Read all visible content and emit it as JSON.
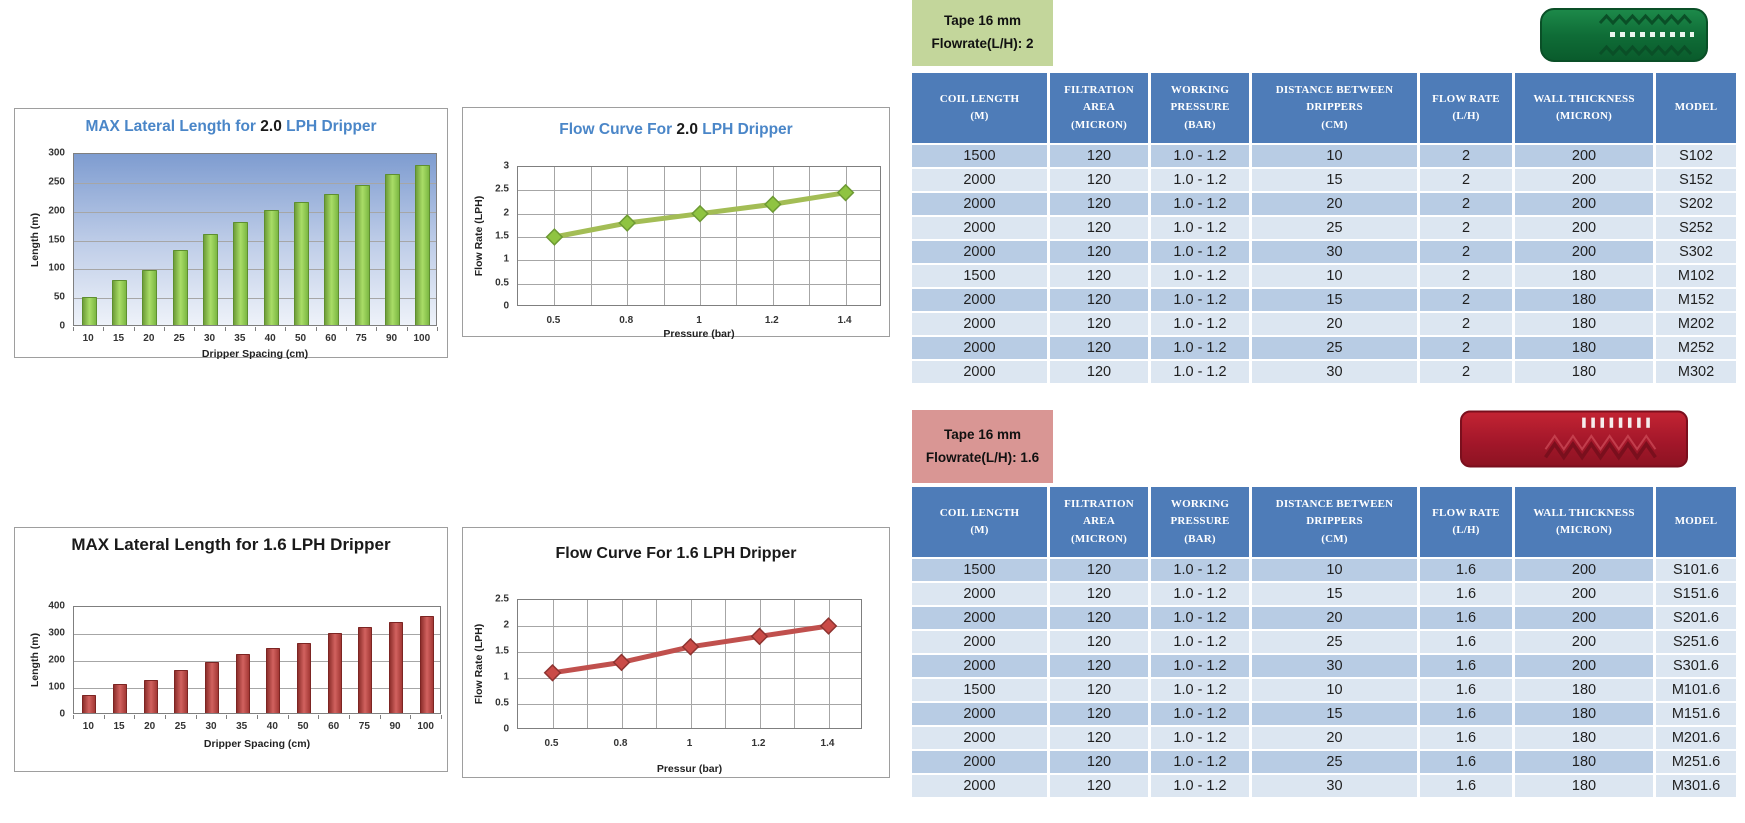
{
  "chart_data": [
    {
      "id": "bar_2lph",
      "type": "bar",
      "title_parts": [
        {
          "text": "MAX Lateral Length for ",
          "color": "#4a86c8"
        },
        {
          "text": "2.0",
          "color": "#1a1a1a"
        },
        {
          "text": " LPH Dripper",
          "color": "#4a86c8"
        }
      ],
      "categories": [
        "10",
        "15",
        "20",
        "25",
        "30",
        "35",
        "40",
        "50",
        "60",
        "75",
        "90",
        "100"
      ],
      "values": [
        48,
        78,
        95,
        130,
        158,
        178,
        200,
        213,
        228,
        242,
        262,
        278
      ],
      "xlabel": "Dripper Spacing (cm)",
      "ylabel": "Length (m)",
      "ylim": [
        0,
        300
      ],
      "ystep": 50,
      "grid": "horizontal",
      "legend": "none",
      "style": {
        "bar_gradient": [
          "#6f9e3a",
          "#a9dd67",
          "#7cb743"
        ],
        "bar_edge": "#5e8f2f",
        "plot_bg": [
          "#7e9cd0",
          "#bccbe7",
          "#eef2f9"
        ]
      }
    },
    {
      "id": "flow_2lph",
      "type": "line",
      "title_parts": [
        {
          "text": "Flow Curve For ",
          "color": "#4a86c8"
        },
        {
          "text": "2.0",
          "color": "#1a1a1a"
        },
        {
          "text": " LPH Dripper",
          "color": "#4a86c8"
        }
      ],
      "categories": [
        "0.5",
        "0.8",
        "1",
        "1.2",
        "1.4"
      ],
      "values": [
        1.5,
        1.8,
        2.0,
        2.2,
        2.45
      ],
      "xlabel": "Pressure (bar)",
      "ylabel": "Flow Rate (LPH)",
      "ylim": [
        0,
        3
      ],
      "ystep": 0.5,
      "grid": "both",
      "legend": "none",
      "style": {
        "line_color": "#a3bd55",
        "marker_fill": "#8fc441",
        "marker_edge": "#6d9a33",
        "plot_bg": [
          "#ffffff"
        ]
      }
    },
    {
      "id": "bar_16lph",
      "type": "bar",
      "title_parts": [
        {
          "text": "MAX Lateral Length for 1.6 LPH Dripper",
          "color": "#1a1a1a"
        }
      ],
      "categories": [
        "10",
        "15",
        "20",
        "25",
        "30",
        "35",
        "40",
        "50",
        "60",
        "75",
        "90",
        "100"
      ],
      "values": [
        65,
        108,
        122,
        158,
        188,
        218,
        242,
        258,
        295,
        318,
        338,
        358
      ],
      "xlabel": "Dripper Spacing (cm)",
      "ylabel": "Length (m)",
      "ylim": [
        0,
        400
      ],
      "ystep": 100,
      "grid": "horizontal",
      "legend": "none",
      "style": {
        "bar_gradient": [
          "#8e2f2c",
          "#d2625f",
          "#a33835"
        ],
        "bar_edge": "#7c2523",
        "plot_bg": [
          "#ffffff"
        ]
      }
    },
    {
      "id": "flow_16lph",
      "type": "line",
      "title_parts": [
        {
          "text": "Flow Curve For 1.6 LPH Dripper",
          "color": "#1a1a1a"
        }
      ],
      "categories": [
        "0.5",
        "0.8",
        "1",
        "1.2",
        "1.4"
      ],
      "values": [
        1.1,
        1.3,
        1.6,
        1.8,
        2.0
      ],
      "xlabel": "Pressur (bar)",
      "ylabel": "Flow Rate (LPH)",
      "ylim": [
        0,
        2.5
      ],
      "ystep": 0.5,
      "grid": "both",
      "legend": "none",
      "style": {
        "line_color": "#c0504d",
        "marker_fill": "#ca4b47",
        "marker_edge": "#8e3330",
        "plot_bg": [
          "#ffffff"
        ]
      }
    }
  ],
  "tables": [
    {
      "tag": {
        "line1": "Tape 16 mm",
        "line2": "Flowrate(L/H): 2",
        "bg": "#c3d69b"
      },
      "dripper_icon": "dripper-photo-green",
      "headers": [
        [
          "COIL LENGTH",
          "(M)"
        ],
        [
          "FILTRATION",
          "AREA",
          "(MICRON)"
        ],
        [
          "WORKING",
          "PRESSURE",
          "(BAR)"
        ],
        [
          "DISTANCE BETWEEN",
          "DRIPPERS",
          "(CM)"
        ],
        [
          "FLOW RATE",
          "(L/H)"
        ],
        [
          "WALL THICKNESS",
          "(MICRON)"
        ],
        [
          "MODEL"
        ]
      ],
      "rows": [
        [
          "1500",
          "120",
          "1.0 - 1.2",
          "10",
          "2",
          "200",
          "S102"
        ],
        [
          "2000",
          "120",
          "1.0 - 1.2",
          "15",
          "2",
          "200",
          "S152"
        ],
        [
          "2000",
          "120",
          "1.0 - 1.2",
          "20",
          "2",
          "200",
          "S202"
        ],
        [
          "2000",
          "120",
          "1.0 - 1.2",
          "25",
          "2",
          "200",
          "S252"
        ],
        [
          "2000",
          "120",
          "1.0 - 1.2",
          "30",
          "2",
          "200",
          "S302"
        ],
        [
          "1500",
          "120",
          "1.0 - 1.2",
          "10",
          "2",
          "180",
          "M102"
        ],
        [
          "2000",
          "120",
          "1.0 - 1.2",
          "15",
          "2",
          "180",
          "M152"
        ],
        [
          "2000",
          "120",
          "1.0 - 1.2",
          "20",
          "2",
          "180",
          "M202"
        ],
        [
          "2000",
          "120",
          "1.0 - 1.2",
          "25",
          "2",
          "180",
          "M252"
        ],
        [
          "2000",
          "120",
          "1.0 - 1.2",
          "30",
          "2",
          "180",
          "M302"
        ]
      ]
    },
    {
      "tag": {
        "line1": "Tape 16 mm",
        "line2": "Flowrate(L/H): 1.6",
        "bg": "#d99694"
      },
      "dripper_icon": "dripper-photo-red",
      "headers": [
        [
          "COIL LENGTH",
          "(M)"
        ],
        [
          "FILTRATION",
          "AREA",
          "(MICRON)"
        ],
        [
          "WORKING",
          "PRESSURE",
          "(BAR)"
        ],
        [
          "DISTANCE BETWEEN",
          "DRIPPERS",
          "(CM)"
        ],
        [
          "FLOW RATE",
          "(L/H)"
        ],
        [
          "WALL THICKNESS",
          "(MICRON)"
        ],
        [
          "MODEL"
        ]
      ],
      "rows": [
        [
          "1500",
          "120",
          "1.0 - 1.2",
          "10",
          "1.6",
          "200",
          "S101.6"
        ],
        [
          "2000",
          "120",
          "1.0 - 1.2",
          "15",
          "1.6",
          "200",
          "S151.6"
        ],
        [
          "2000",
          "120",
          "1.0 - 1.2",
          "20",
          "1.6",
          "200",
          "S201.6"
        ],
        [
          "2000",
          "120",
          "1.0 - 1.2",
          "25",
          "1.6",
          "200",
          "S251.6"
        ],
        [
          "2000",
          "120",
          "1.0 - 1.2",
          "30",
          "1.6",
          "200",
          "S301.6"
        ],
        [
          "1500",
          "120",
          "1.0 - 1.2",
          "10",
          "1.6",
          "180",
          "M101.6"
        ],
        [
          "2000",
          "120",
          "1.0 - 1.2",
          "15",
          "1.6",
          "180",
          "M151.6"
        ],
        [
          "2000",
          "120",
          "1.0 - 1.2",
          "20",
          "1.6",
          "180",
          "M201.6"
        ],
        [
          "2000",
          "120",
          "1.0 - 1.2",
          "25",
          "1.6",
          "180",
          "M251.6"
        ],
        [
          "2000",
          "120",
          "1.0 - 1.2",
          "30",
          "1.6",
          "180",
          "M301.6"
        ]
      ]
    }
  ],
  "table_style": {
    "header_bg": "#4e7cb8",
    "header_text": "#ffffff",
    "row_dark": "#b8cce4",
    "row_light": "#dce6f1",
    "model_col": "#dce6f1",
    "cell_text": "#1f1f1f"
  },
  "drippers": [
    {
      "icon": "dripper-photo-green",
      "body_color": "#0f6d37"
    },
    {
      "icon": "dripper-photo-red",
      "body_color": "#b01e2e"
    }
  ]
}
